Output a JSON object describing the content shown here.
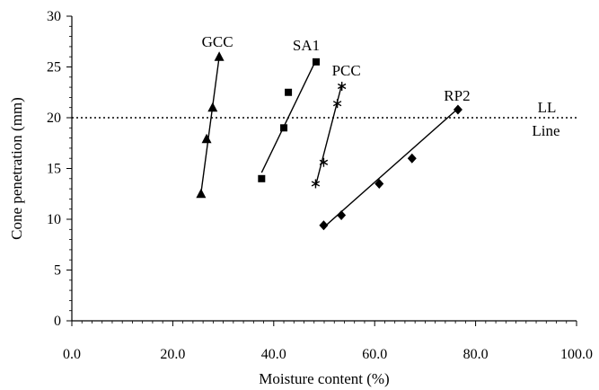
{
  "chart_data": {
    "type": "scatter",
    "xlabel": "Moisture content (%)",
    "ylabel": "Cone penetration (mm)",
    "xlim": [
      0,
      100
    ],
    "ylim": [
      0,
      30
    ],
    "x_ticks": [
      "0.0",
      "20.0",
      "40.0",
      "60.0",
      "80.0",
      "100.0"
    ],
    "y_ticks": [
      "0",
      "5",
      "10",
      "15",
      "20",
      "25",
      "30"
    ],
    "grid": false,
    "reference_line": {
      "y": 20,
      "style": "dotted",
      "labels": [
        "LL",
        "Line"
      ]
    },
    "series": [
      {
        "name": "GCC",
        "marker": "triangle",
        "points": [
          [
            25.6,
            12.5
          ],
          [
            26.7,
            17.9
          ],
          [
            27.9,
            21.0
          ],
          [
            29.2,
            26.0
          ]
        ],
        "fit": [
          [
            25.6,
            12.6
          ],
          [
            29.2,
            26.0
          ]
        ]
      },
      {
        "name": "SA1",
        "marker": "square",
        "points": [
          [
            37.6,
            14.0
          ],
          [
            42.0,
            19.0
          ],
          [
            42.9,
            22.5
          ],
          [
            48.4,
            25.5
          ]
        ],
        "fit": [
          [
            37.6,
            14.6
          ],
          [
            48.4,
            25.7
          ]
        ]
      },
      {
        "name": "PCC",
        "marker": "star",
        "points": [
          [
            48.3,
            13.5
          ],
          [
            49.9,
            15.6
          ],
          [
            52.6,
            21.4
          ],
          [
            53.5,
            23.1
          ]
        ],
        "fit": [
          [
            48.3,
            13.3
          ],
          [
            53.5,
            23.3
          ]
        ]
      },
      {
        "name": "RP2",
        "marker": "diamond",
        "points": [
          [
            49.9,
            9.4
          ],
          [
            53.4,
            10.4
          ],
          [
            60.9,
            13.5
          ],
          [
            67.4,
            16.0
          ],
          [
            76.5,
            20.8
          ]
        ],
        "fit": [
          [
            49.9,
            9.2
          ],
          [
            76.5,
            20.9
          ]
        ]
      }
    ]
  }
}
